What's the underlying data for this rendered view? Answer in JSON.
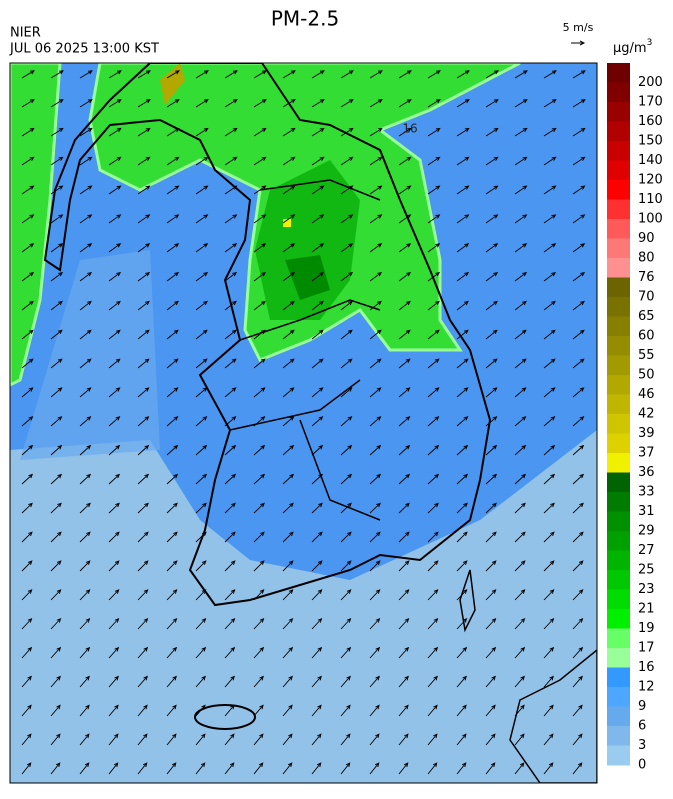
{
  "header": {
    "title": "PM-2.5",
    "source": "NIER",
    "timestamp": "JUL 06 2025 13:00 KST"
  },
  "wind_scale": {
    "label": "5 m/s"
  },
  "legend": {
    "unit": "μg/m",
    "unit_sup": "3",
    "labels": [
      200,
      170,
      160,
      150,
      140,
      120,
      110,
      100,
      90,
      80,
      76,
      70,
      65,
      60,
      55,
      50,
      46,
      42,
      39,
      37,
      36,
      33,
      31,
      29,
      27,
      25,
      23,
      21,
      19,
      17,
      16,
      12,
      9,
      6,
      3,
      0
    ],
    "colors": [
      "#6e0000",
      "#800000",
      "#990000",
      "#b00000",
      "#c80000",
      "#e00000",
      "#ff0000",
      "#ff3030",
      "#ff5a5a",
      "#ff7878",
      "#ff9090",
      "#6b6400",
      "#7a7200",
      "#877f00",
      "#958c00",
      "#a39a00",
      "#b2a800",
      "#c0b600",
      "#cfc400",
      "#ddd200",
      "#f0f000",
      "#006400",
      "#007d00",
      "#009000",
      "#00a000",
      "#00b400",
      "#00c800",
      "#00dc00",
      "#00f000",
      "#66ff66",
      "#99ff99",
      "#3399ff",
      "#4da6ff",
      "#66aaee",
      "#80b8ec",
      "#99ccee"
    ]
  },
  "map": {
    "contour_label": "16"
  }
}
